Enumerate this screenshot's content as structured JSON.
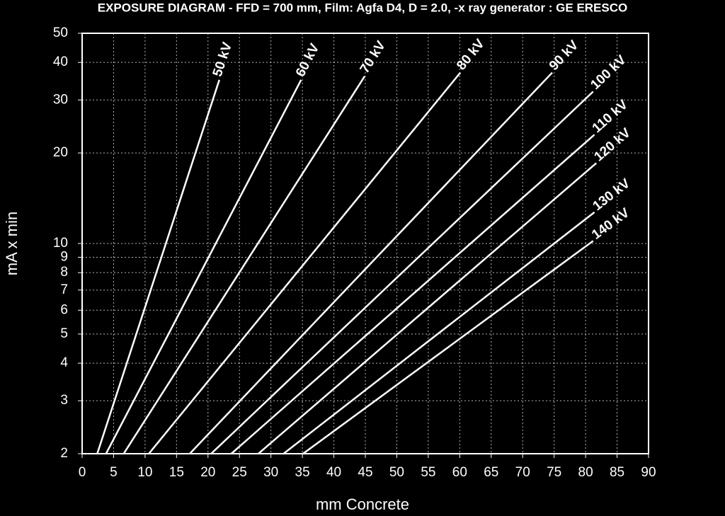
{
  "chart_data": {
    "type": "line",
    "title": "EXPOSURE DIAGRAM - FFD = 700 mm, Film: Agfa D4, D = 2.0, -x ray generator : GE ERESCO",
    "x_label": "mm Concrete",
    "y_label": "mA x min",
    "log_scale": "y",
    "grid": true,
    "color": "#ffffff",
    "xlim": [
      0,
      90
    ],
    "xticks": [
      0,
      5,
      10,
      15,
      20,
      25,
      30,
      35,
      40,
      45,
      50,
      55,
      60,
      65,
      70,
      75,
      80,
      85,
      90
    ],
    "ylim": [
      2,
      50
    ],
    "yticks": [
      2,
      3,
      4,
      5,
      6,
      7,
      8,
      9,
      10,
      20,
      30,
      40,
      50
    ],
    "series": [
      {
        "name": "50 kV",
        "x": [
          2.4,
          21.8
        ],
        "values": [
          2,
          35
        ]
      },
      {
        "name": "60 kV",
        "x": [
          3.8,
          34.8
        ],
        "values": [
          2,
          35
        ]
      },
      {
        "name": "70 kV",
        "x": [
          6.6,
          44.9
        ],
        "values": [
          2,
          36
        ]
      },
      {
        "name": "80 kV",
        "x": [
          10.6,
          60.1
        ],
        "values": [
          2,
          37
        ]
      },
      {
        "name": "90 kV",
        "x": [
          17.1,
          74.7
        ],
        "values": [
          2,
          37
        ]
      },
      {
        "name": "100 kV",
        "x": [
          20.5,
          81.2
        ],
        "values": [
          2,
          32
        ]
      },
      {
        "name": "110 kV",
        "x": [
          23.7,
          81.4
        ],
        "values": [
          2,
          23
        ]
      },
      {
        "name": "120 kV",
        "x": [
          28,
          81.7
        ],
        "values": [
          2,
          18.5
        ]
      },
      {
        "name": "130 kV",
        "x": [
          32,
          81.4
        ],
        "values": [
          2,
          12.7
        ]
      },
      {
        "name": "140 kV",
        "x": [
          35.1,
          81.2
        ],
        "values": [
          2,
          10.2
        ]
      }
    ]
  }
}
